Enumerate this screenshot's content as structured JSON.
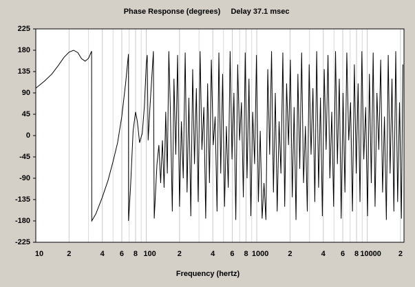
{
  "chart_data": {
    "type": "line",
    "title": "Phase Response (degrees)",
    "subtitle": "Delay 37.1 msec",
    "x_label": "Frequency (hertz)",
    "xscale": "log",
    "grid": true,
    "color": "#000000",
    "xlim": [
      10,
      21500
    ],
    "ylim": [
      -225,
      225
    ],
    "yticks": [
      -225,
      -180,
      -135,
      -90,
      -45,
      0,
      45,
      90,
      135,
      180,
      225
    ],
    "xticks": [
      10,
      {
        "value": 20,
        "label": "2"
      },
      {
        "value": 40,
        "label": "4"
      },
      {
        "value": 60,
        "label": "6"
      },
      {
        "value": 80,
        "label": "8"
      },
      100,
      {
        "value": 200,
        "label": "2"
      },
      {
        "value": 400,
        "label": "4"
      },
      {
        "value": 600,
        "label": "6"
      },
      {
        "value": 800,
        "label": "8"
      },
      1000,
      {
        "value": 2000,
        "label": "2"
      },
      {
        "value": 4000,
        "label": "4"
      },
      {
        "value": 6000,
        "label": "6"
      },
      {
        "value": 8000,
        "label": "8"
      },
      10000,
      {
        "value": 20000,
        "label": "2"
      }
    ],
    "xminorticks": [
      30,
      50,
      70,
      90,
      300,
      500,
      700,
      900,
      3000,
      5000,
      7000,
      9000
    ],
    "x": [
      10,
      12,
      14,
      16,
      18,
      20,
      22,
      24,
      26,
      28,
      30,
      32,
      32.1,
      35,
      40,
      45,
      50,
      55,
      60,
      65,
      69,
      69.1,
      72,
      76,
      80,
      83,
      87,
      92,
      96,
      100,
      102,
      104,
      108,
      112,
      116,
      118,
      125,
      130,
      135,
      140,
      145,
      150,
      155,
      160,
      165,
      172,
      178,
      185,
      192,
      200,
      208,
      216,
      225,
      234,
      243,
      253,
      263,
      273,
      284,
      295,
      307,
      319,
      332,
      345,
      359,
      373,
      388,
      404,
      420,
      437,
      454,
      472,
      491,
      511,
      531,
      552,
      574,
      597,
      621,
      646,
      672,
      699,
      727,
      756,
      786,
      817,
      850,
      884,
      919,
      956,
      994,
      1034,
      1075,
      1118,
      1163,
      1210,
      1258,
      1308,
      1361,
      1415,
      1472,
      1530,
      1592,
      1655,
      1722,
      1790,
      1862,
      1937,
      2014,
      2095,
      2178,
      2265,
      2356,
      2450,
      2548,
      2650,
      2756,
      2866,
      2981,
      3100,
      3224,
      3353,
      3487,
      3627,
      3772,
      3923,
      4079,
      4243,
      4412,
      4589,
      4772,
      4963,
      5162,
      5368,
      5583,
      5806,
      6039,
      6280,
      6531,
      6793,
      7065,
      7347,
      7641,
      7947,
      8265,
      8595,
      8939,
      9297,
      9669,
      10055,
      10458,
      10876,
      11311,
      11763,
      12234,
      12723,
      13232,
      13761,
      14312,
      14884,
      15479,
      16099,
      16742,
      17412,
      18109,
      18833,
      19586,
      20370,
      21000
    ],
    "values": [
      100,
      115,
      130,
      148,
      165,
      176,
      180,
      175,
      162,
      157,
      163,
      178,
      -180,
      -165,
      -130,
      -95,
      -55,
      -15,
      40,
      110,
      172,
      -180,
      -110,
      10,
      50,
      30,
      -15,
      5,
      60,
      150,
      170,
      -10,
      60,
      120,
      178,
      -175,
      -60,
      -20,
      -100,
      -10,
      -110,
      50,
      -80,
      178,
      60,
      -160,
      120,
      -40,
      170,
      -150,
      30,
      -90,
      175,
      -120,
      80,
      -170,
      140,
      -60,
      100,
      -140,
      178,
      -30,
      60,
      -175,
      110,
      -100,
      160,
      -20,
      40,
      -160,
      175,
      -80,
      130,
      -150,
      20,
      -110,
      178,
      -50,
      90,
      -178,
      150,
      -10,
      70,
      -130,
      175,
      -90,
      120,
      -170,
      50,
      -60,
      170,
      -140,
      10,
      -175,
      -100,
      -178,
      140,
      -40,
      178,
      -120,
      90,
      -160,
      30,
      -80,
      175,
      -150,
      110,
      -20,
      160,
      -130,
      60,
      -178,
      130,
      -70,
      175,
      -100,
      20,
      -160,
      150,
      -40,
      100,
      -140,
      178,
      -110,
      80,
      -170,
      140,
      -30,
      170,
      -90,
      50,
      -150,
      178,
      -60,
      120,
      -175,
      90,
      -120,
      175,
      -10,
      70,
      -160,
      150,
      -80,
      110,
      -140,
      178,
      -50,
      60,
      -170,
      130,
      -100,
      175,
      -150,
      90,
      -30,
      160,
      -120,
      40,
      -178,
      170,
      -80,
      120,
      -160,
      178,
      -140,
      70,
      -175,
      150
    ]
  }
}
